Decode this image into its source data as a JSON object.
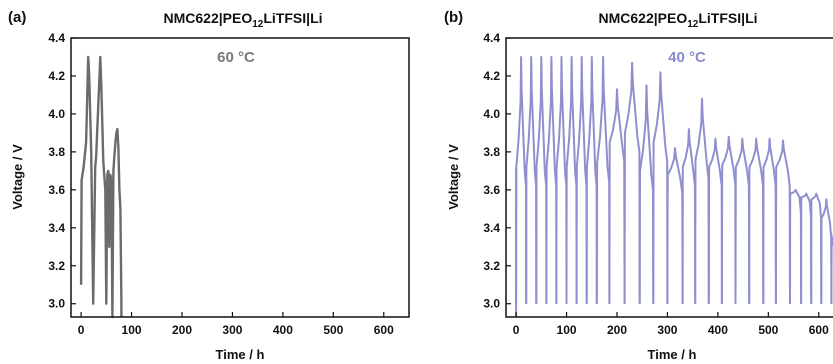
{
  "chart_data": [
    {
      "type": "line",
      "panel_label": "(a)",
      "title_main": "NMC622",
      "title_sep1": "|",
      "title_electrolyte": "PEO",
      "title_subscript": "12",
      "title_salt": "LiTFSI",
      "title_sep2": "|",
      "title_anode": "Li",
      "annotation": "60 °C",
      "xlabel": "Time / h",
      "ylabel": "Voltage / V",
      "xlim": [
        -20,
        650
      ],
      "ylim": [
        2.93,
        4.4
      ],
      "xticks": [
        0,
        100,
        200,
        300,
        400,
        500,
        600
      ],
      "yticks": [
        3.0,
        3.2,
        3.4,
        3.6,
        3.8,
        4.0,
        4.2,
        4.4
      ],
      "series": [
        {
          "color": "#6b6b6b",
          "x": [
            0,
            1,
            5,
            10,
            14,
            16,
            20,
            24,
            28,
            30,
            35,
            38,
            40,
            44,
            48,
            50,
            52,
            54,
            56,
            58,
            60,
            62,
            64,
            66,
            68,
            70,
            72,
            74,
            76,
            78,
            80,
            80
          ],
          "y": [
            3.1,
            3.65,
            3.72,
            3.85,
            4.3,
            4.2,
            3.8,
            3.0,
            3.72,
            3.78,
            4.1,
            4.3,
            4.15,
            3.75,
            3.6,
            3.0,
            3.68,
            3.7,
            3.3,
            3.68,
            3.65,
            2.9,
            3.7,
            3.78,
            3.85,
            3.9,
            3.92,
            3.82,
            3.6,
            3.5,
            3.0,
            2.9
          ]
        }
      ]
    },
    {
      "type": "line",
      "panel_label": "(b)",
      "title_main": "NMC622",
      "title_sep1": "|",
      "title_electrolyte": "PEO",
      "title_subscript": "12",
      "title_salt": "LiTFSI",
      "title_sep2": "|",
      "title_anode": "Li",
      "annotation": "40 °C",
      "xlabel": "Time / h",
      "ylabel": "Voltage / V",
      "xlim": [
        -20,
        650
      ],
      "ylim": [
        2.93,
        4.4
      ],
      "xticks": [
        0,
        100,
        200,
        300,
        400,
        500,
        600
      ],
      "yticks": [
        3.0,
        3.2,
        3.4,
        3.6,
        3.8,
        4.0,
        4.2,
        4.4
      ],
      "cycles": [
        {
          "start": 0,
          "end": 20,
          "peak": 4.3,
          "base": 3.72
        },
        {
          "start": 20,
          "end": 40,
          "peak": 4.3,
          "base": 3.72
        },
        {
          "start": 40,
          "end": 60,
          "peak": 4.3,
          "base": 3.72
        },
        {
          "start": 60,
          "end": 80,
          "peak": 4.3,
          "base": 3.72
        },
        {
          "start": 80,
          "end": 100,
          "peak": 4.3,
          "base": 3.72
        },
        {
          "start": 100,
          "end": 120,
          "peak": 4.3,
          "base": 3.72
        },
        {
          "start": 120,
          "end": 140,
          "peak": 4.3,
          "base": 3.72
        },
        {
          "start": 140,
          "end": 160,
          "peak": 4.3,
          "base": 3.72
        },
        {
          "start": 160,
          "end": 185,
          "peak": 4.3,
          "base": 3.74
        },
        {
          "start": 185,
          "end": 215,
          "peak": 4.13,
          "base": 3.85
        },
        {
          "start": 215,
          "end": 245,
          "peak": 4.27,
          "base": 3.9
        },
        {
          "start": 245,
          "end": 272,
          "peak": 4.15,
          "base": 3.7
        },
        {
          "start": 272,
          "end": 300,
          "peak": 4.22,
          "base": 3.85
        },
        {
          "start": 300,
          "end": 330,
          "peak": 3.82,
          "base": 3.68
        },
        {
          "start": 330,
          "end": 355,
          "peak": 3.92,
          "base": 3.72
        },
        {
          "start": 355,
          "end": 382,
          "peak": 4.08,
          "base": 3.76
        },
        {
          "start": 382,
          "end": 408,
          "peak": 3.87,
          "base": 3.72
        },
        {
          "start": 408,
          "end": 435,
          "peak": 3.88,
          "base": 3.73
        },
        {
          "start": 435,
          "end": 462,
          "peak": 3.87,
          "base": 3.72
        },
        {
          "start": 462,
          "end": 490,
          "peak": 3.87,
          "base": 3.72
        },
        {
          "start": 490,
          "end": 515,
          "peak": 3.87,
          "base": 3.72
        },
        {
          "start": 515,
          "end": 543,
          "peak": 3.86,
          "base": 3.72
        },
        {
          "start": 543,
          "end": 565,
          "peak": 3.6,
          "base": 3.58
        },
        {
          "start": 565,
          "end": 585,
          "peak": 3.58,
          "base": 3.56
        },
        {
          "start": 585,
          "end": 605,
          "peak": 3.58,
          "base": 3.55
        },
        {
          "start": 605,
          "end": 625,
          "peak": 3.55,
          "base": 3.45
        },
        {
          "start": 625,
          "end": 645,
          "peak": 3.58,
          "base": 3.3
        }
      ],
      "cycle_floor": 3.0,
      "series": [
        {
          "color": "#8f8fd0"
        }
      ]
    }
  ]
}
